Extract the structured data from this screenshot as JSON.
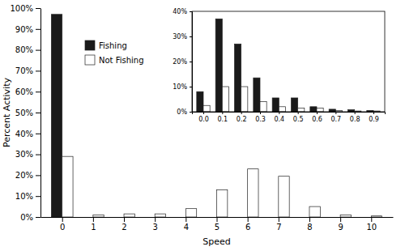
{
  "chart_data": [
    {
      "type": "bar",
      "xlabel": "Speed",
      "ylabel": "Percent Activity",
      "x": [
        0,
        1,
        2,
        3,
        4,
        5,
        6,
        7,
        8,
        9,
        10
      ],
      "xlim": [
        -0.7,
        10.7
      ],
      "xticks": [
        0,
        1,
        2,
        3,
        4,
        5,
        6,
        7,
        8,
        9,
        10
      ],
      "ylim": [
        0,
        100
      ],
      "yticks": [
        {
          "value": 0,
          "label": "0%"
        },
        {
          "value": 10,
          "label": "10%"
        },
        {
          "value": 20,
          "label": "20%"
        },
        {
          "value": 30,
          "label": "30%"
        },
        {
          "value": 40,
          "label": "40%"
        },
        {
          "value": 50,
          "label": "50%"
        },
        {
          "value": 60,
          "label": "60%"
        },
        {
          "value": 70,
          "label": "70%"
        },
        {
          "value": 80,
          "label": "80%"
        },
        {
          "value": 90,
          "label": "90%"
        },
        {
          "value": 100,
          "label": "100%"
        }
      ],
      "grid": false,
      "series": [
        {
          "name": "Fishing",
          "color": "#1a1a1a",
          "values": [
            97,
            0,
            0,
            0,
            0,
            0,
            0,
            0,
            0,
            0,
            0
          ]
        },
        {
          "name": "Not Fishing",
          "color": "#ffffff",
          "values": [
            29,
            1,
            1.5,
            1.5,
            4,
            13,
            23,
            19.5,
            5,
            1,
            0.5
          ]
        }
      ]
    },
    {
      "type": "bar",
      "x": [
        0.0,
        0.1,
        0.2,
        0.3,
        0.4,
        0.5,
        0.6,
        0.7,
        0.8,
        0.9
      ],
      "xlim": [
        -0.06,
        0.96
      ],
      "xticks": [
        {
          "value": 0,
          "label": "0.0"
        },
        0.1,
        0.2,
        0.3,
        0.4,
        0.5,
        0.6,
        0.7,
        0.8,
        0.9
      ],
      "ylim": [
        0,
        40
      ],
      "yticks": [
        {
          "value": 0,
          "label": "0%"
        },
        {
          "value": 10,
          "label": "10%"
        },
        {
          "value": 20,
          "label": "20%"
        },
        {
          "value": 30,
          "label": "30%"
        },
        {
          "value": 40,
          "label": "40%"
        }
      ],
      "grid": false,
      "series": [
        {
          "color": "#1a1a1a",
          "values": [
            8,
            37,
            27,
            13.5,
            5.5,
            5.5,
            2,
            1,
            0.8,
            0.5
          ]
        },
        {
          "color": "#ffffff",
          "values": [
            2.5,
            10,
            10,
            4,
            2,
            1.5,
            1.5,
            0.5,
            0.3,
            0.3
          ]
        }
      ]
    }
  ]
}
